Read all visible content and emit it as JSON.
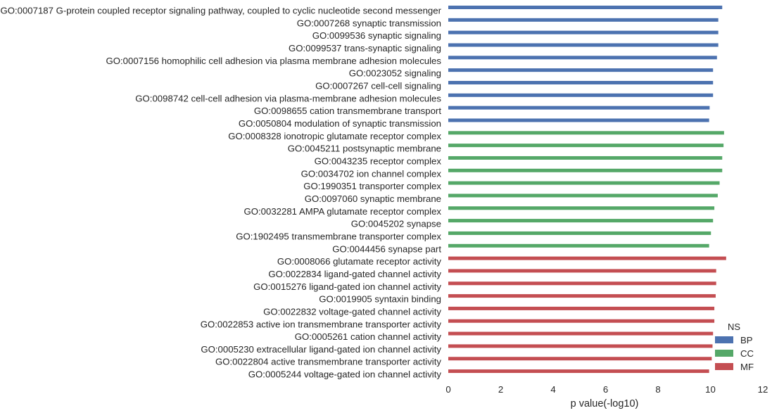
{
  "chart_data": {
    "type": "bar",
    "orientation": "horizontal",
    "xlabel": "p value(-log10)",
    "ylabel": "",
    "xlim": [
      0,
      12
    ],
    "xticks": [
      0,
      2,
      4,
      6,
      8,
      10,
      12
    ],
    "grid": false,
    "legend": {
      "title": "NS",
      "placement": "lower-right",
      "entries": [
        {
          "label": "BP",
          "color": "#4c72b0"
        },
        {
          "label": "CC",
          "color": "#55a868"
        },
        {
          "label": "MF",
          "color": "#c44e52"
        }
      ]
    },
    "categories": [
      "GO:0007187 G-protein coupled receptor signaling pathway, coupled to cyclic nucleotide second messenger",
      "GO:0007268 synaptic transmission",
      "GO:0099536 synaptic signaling",
      "GO:0099537 trans-synaptic signaling",
      "GO:0007156 homophilic cell adhesion via plasma membrane adhesion molecules",
      "GO:0023052 signaling",
      "GO:0007267 cell-cell signaling",
      "GO:0098742 cell-cell adhesion via plasma-membrane adhesion molecules",
      "GO:0098655 cation transmembrane transport",
      "GO:0050804 modulation of synaptic transmission",
      "GO:0008328 ionotropic glutamate receptor complex",
      "GO:0045211 postsynaptic membrane",
      "GO:0043235 receptor complex",
      "GO:0034702 ion channel complex",
      "GO:1990351 transporter complex",
      "GO:0097060 synaptic membrane",
      "GO:0032281 AMPA glutamate receptor complex",
      "GO:0045202 synapse",
      "GO:1902495 transmembrane transporter complex",
      "GO:0044456 synapse part",
      "GO:0008066 glutamate receptor activity",
      "GO:0022834 ligand-gated channel activity",
      "GO:0015276 ligand-gated ion channel activity",
      "GO:0019905 syntaxin binding",
      "GO:0022832 voltage-gated channel activity",
      "GO:0022853 active ion transmembrane transporter activity",
      "GO:0005261 cation channel activity",
      "GO:0005230 extracellular ligand-gated ion channel activity",
      "GO:0022804 active transmembrane transporter activity",
      "GO:0005244 voltage-gated ion channel activity"
    ],
    "groups": [
      "BP",
      "BP",
      "BP",
      "BP",
      "BP",
      "BP",
      "BP",
      "BP",
      "BP",
      "BP",
      "CC",
      "CC",
      "CC",
      "CC",
      "CC",
      "CC",
      "CC",
      "CC",
      "CC",
      "CC",
      "MF",
      "MF",
      "MF",
      "MF",
      "MF",
      "MF",
      "MF",
      "MF",
      "MF",
      "MF"
    ],
    "values": [
      10.45,
      10.3,
      10.3,
      10.3,
      10.25,
      10.1,
      10.1,
      10.1,
      9.97,
      9.95,
      10.52,
      10.5,
      10.45,
      10.45,
      10.35,
      10.28,
      10.15,
      10.1,
      10.02,
      9.95,
      10.6,
      10.22,
      10.22,
      10.2,
      10.15,
      10.15,
      10.1,
      10.08,
      10.05,
      9.95
    ]
  }
}
